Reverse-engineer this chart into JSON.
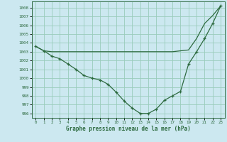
{
  "title": "Graphe pression niveau de la mer (hPa)",
  "background_color": "#cce8f0",
  "grid_color": "#99ccbb",
  "line_color": "#2d6a3f",
  "xlim": [
    -0.5,
    23.5
  ],
  "ylim": [
    995.5,
    1008.7
  ],
  "yticks": [
    996,
    997,
    998,
    999,
    1000,
    1001,
    1002,
    1003,
    1004,
    1005,
    1006,
    1007,
    1008
  ],
  "xticks": [
    0,
    1,
    2,
    3,
    4,
    5,
    6,
    7,
    8,
    9,
    10,
    11,
    12,
    13,
    14,
    15,
    16,
    17,
    18,
    19,
    20,
    21,
    22,
    23
  ],
  "series1_x": [
    0,
    1,
    2,
    3,
    4,
    5,
    6,
    7,
    8,
    9,
    10,
    11,
    12,
    13,
    14,
    15,
    16,
    17,
    18,
    19,
    20,
    21,
    22,
    23
  ],
  "series1_y": [
    1003.6,
    1003.1,
    1003.0,
    1003.0,
    1003.0,
    1003.0,
    1003.0,
    1003.0,
    1003.0,
    1003.0,
    1003.0,
    1003.0,
    1003.0,
    1003.0,
    1003.0,
    1003.0,
    1003.0,
    1003.0,
    1003.1,
    1003.2,
    1004.5,
    1006.2,
    1007.1,
    1008.2
  ],
  "series2_x": [
    0,
    1,
    2,
    3,
    4,
    5,
    6,
    7,
    8,
    9,
    10,
    11,
    12,
    13,
    14,
    15,
    16,
    17,
    18,
    19,
    20,
    21,
    22,
    23
  ],
  "series2_y": [
    1003.6,
    1003.1,
    1002.5,
    1002.2,
    1001.6,
    1001.0,
    1000.3,
    1000.0,
    999.8,
    999.3,
    998.4,
    997.4,
    996.6,
    996.0,
    996.0,
    996.5,
    997.5,
    998.0,
    998.5,
    1001.6,
    1003.0,
    1004.5,
    1006.2,
    1008.2
  ]
}
